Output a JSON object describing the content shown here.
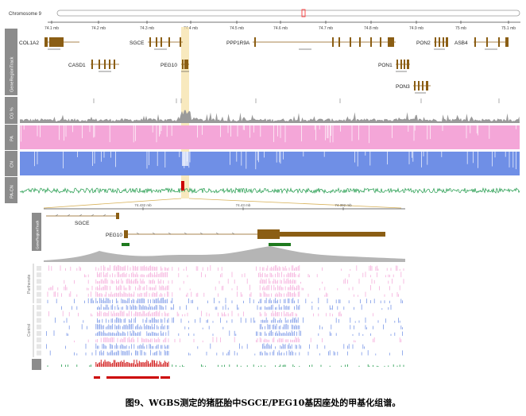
{
  "top": {
    "chromosome_label": "Chromosome 9",
    "axis_ticks": [
      "74.1 mb",
      "74.2 mb",
      "74.3 mb",
      "74.4 mb",
      "74.5 mb",
      "74.6 mb",
      "74.7 mb",
      "74.8 mb",
      "74.9 mb",
      "75 mb",
      "75.1 mb"
    ],
    "track_label": "GeneRegionTrack",
    "genes": [
      {
        "name": "COL1A2"
      },
      {
        "name": "SGCE"
      },
      {
        "name": "PPP1R9A"
      },
      {
        "name": "PON2"
      },
      {
        "name": "ASB4"
      },
      {
        "name": "CASD1"
      },
      {
        "name": "PEG10"
      },
      {
        "name": "PON1"
      },
      {
        "name": "PON3"
      }
    ],
    "data_tracks": [
      {
        "label": "CG %"
      },
      {
        "label": "PA"
      },
      {
        "label": "CN"
      },
      {
        "label": "PA-CN"
      }
    ]
  },
  "zoom": {
    "axis_ticks": [
      "74.432 mb",
      "74.43 mb",
      "74.392 mb"
    ],
    "track_label": "GeneRegionTrack",
    "genes": [
      {
        "name": "SGCE"
      },
      {
        "name": "PEG10"
      }
    ],
    "group_labels": [
      "Parthenote",
      "Control"
    ]
  },
  "colors": {
    "gene": "#8b5e14",
    "pink": "#f4a6d8",
    "blue": "#6f8fe6",
    "green": "#1f9a4a",
    "red": "#cc0000",
    "dmr": "#1e7a1e",
    "highlight": "#f6e1a8",
    "label_bg": "#8c8c8c"
  },
  "caption": "图9、WGBS测定的猪胚胎中SGCE/PEG10基因座处的甲基化组谱。"
}
